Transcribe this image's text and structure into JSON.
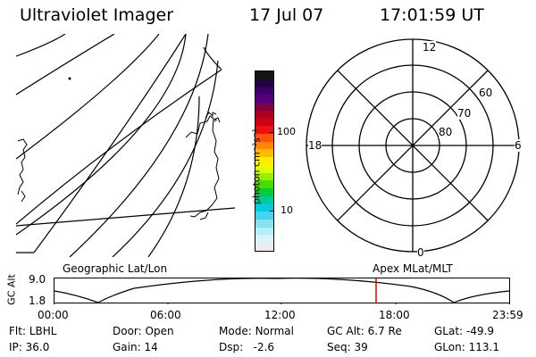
{
  "header": {
    "title": "Ultraviolet Imager",
    "date": "17 Jul 07",
    "time": "17:01:59 UT"
  },
  "map_panel": {
    "caption": "Geographic Lat/Lon"
  },
  "colorbar": {
    "unit_label": "photon cm⁻²s⁻¹",
    "ticks": [
      "100",
      "10"
    ],
    "colors": [
      "#141414",
      "#220044",
      "#3a0066",
      "#55007a",
      "#800040",
      "#aa0022",
      "#cc0010",
      "#ee1010",
      "#ff5500",
      "#ff8800",
      "#ffbb00",
      "#ffee00",
      "#ddff00",
      "#99ee00",
      "#44dd00",
      "#00cc44",
      "#00cc99",
      "#00ccdd",
      "#44d4ee",
      "#88e0f0",
      "#b8ecf6",
      "#d8f4fa",
      "#ececec"
    ]
  },
  "polar_panel": {
    "caption": "Apex MLat/MLT",
    "mlt_labels": [
      "12",
      "18",
      "6",
      "0"
    ],
    "lat_labels": [
      "60",
      "70",
      "80"
    ]
  },
  "timeline": {
    "y_axis_label": "GC Alt",
    "y_ticks": [
      "9.0",
      "1.8"
    ],
    "x_ticks": [
      "00:00",
      "06:00",
      "12:00",
      "18:00",
      "23:59"
    ],
    "marker_color": "#dd0000"
  },
  "info": {
    "row1": [
      {
        "label": "Flt:",
        "value": "LBHL"
      },
      {
        "label": "Door:",
        "value": "Open"
      },
      {
        "label": "Mode:",
        "value": "Normal"
      },
      {
        "label": "GC Alt:",
        "value": "6.7 Re"
      },
      {
        "label": "GLat:",
        "value": "-49.9"
      }
    ],
    "row2": [
      {
        "label": "IP:",
        "value": "36.0"
      },
      {
        "label": "Gain:",
        "value": "14"
      },
      {
        "label": "Dsp:",
        "value": "-2.6"
      },
      {
        "label": "Seq:",
        "value": "39"
      },
      {
        "label": "GLon:",
        "value": "113.1"
      }
    ]
  }
}
